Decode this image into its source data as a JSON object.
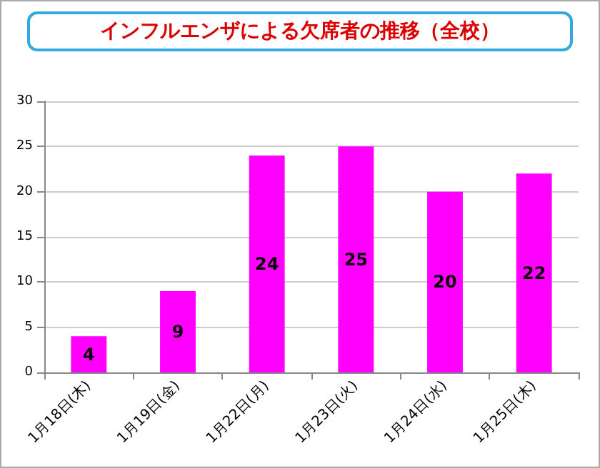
{
  "chart_data": {
    "type": "bar",
    "title": "インフルエンザによる欠席者の推移（全校）",
    "categories": [
      "1月18日(木)",
      "1月19日(金)",
      "1月22日(月)",
      "1月23日(火)",
      "1月24日(水)",
      "1月25日(木)"
    ],
    "values": [
      4,
      9,
      24,
      25,
      20,
      22
    ],
    "color": "#ff00ff",
    "ylim": [
      0,
      30
    ],
    "yticks": [
      0,
      5,
      10,
      15,
      20,
      25,
      30
    ],
    "grid": "y",
    "data_labels": true
  }
}
